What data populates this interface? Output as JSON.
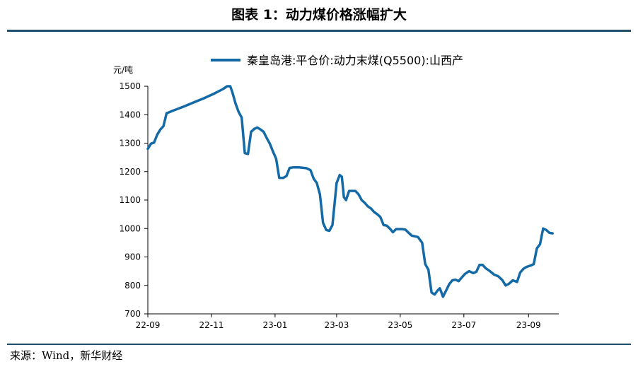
{
  "figure_title": "图表 1：动力煤价格涨幅扩大",
  "source": "来源：Wind，新华财经",
  "colors": {
    "series": "#136aa6",
    "rule": "#1f4e6b",
    "axis": "#000000"
  },
  "chart_data": {
    "type": "line",
    "title": "",
    "ylabel": "元/吨",
    "xlabel": "",
    "ylim": [
      700,
      1500
    ],
    "yticks": [
      700,
      800,
      900,
      1000,
      1100,
      1200,
      1300,
      1400,
      1500
    ],
    "xlim": [
      "2022-09-01",
      "2023-09-30"
    ],
    "xticks": [
      {
        "date": "2022-09-01",
        "label": "22-09"
      },
      {
        "date": "2022-11-01",
        "label": "22-11"
      },
      {
        "date": "2023-01-01",
        "label": "23-01"
      },
      {
        "date": "2023-03-01",
        "label": "23-03"
      },
      {
        "date": "2023-05-01",
        "label": "23-05"
      },
      {
        "date": "2023-07-01",
        "label": "23-07"
      },
      {
        "date": "2023-09-01",
        "label": "23-09"
      }
    ],
    "grid": false,
    "legend_position": "top",
    "series": [
      {
        "name": "秦皇岛港:平仓价:动力末煤(Q5500):山西产",
        "points": [
          [
            "2022-09-01",
            1280
          ],
          [
            "2022-09-04",
            1298
          ],
          [
            "2022-09-07",
            1302
          ],
          [
            "2022-09-10",
            1330
          ],
          [
            "2022-09-13",
            1348
          ],
          [
            "2022-09-16",
            1360
          ],
          [
            "2022-09-19",
            1405
          ],
          [
            "2022-09-25",
            1414
          ],
          [
            "2022-10-05",
            1428
          ],
          [
            "2022-10-15",
            1443
          ],
          [
            "2022-10-25",
            1458
          ],
          [
            "2022-11-04",
            1475
          ],
          [
            "2022-11-12",
            1490
          ],
          [
            "2022-11-16",
            1500
          ],
          [
            "2022-11-19",
            1500
          ],
          [
            "2022-11-21",
            1480
          ],
          [
            "2022-11-24",
            1440
          ],
          [
            "2022-11-27",
            1410
          ],
          [
            "2022-11-30",
            1390
          ],
          [
            "2022-12-03",
            1265
          ],
          [
            "2022-12-06",
            1262
          ],
          [
            "2022-12-09",
            1340
          ],
          [
            "2022-12-12",
            1350
          ],
          [
            "2022-12-15",
            1355
          ],
          [
            "2022-12-18",
            1348
          ],
          [
            "2022-12-21",
            1340
          ],
          [
            "2022-12-24",
            1318
          ],
          [
            "2022-12-27",
            1298
          ],
          [
            "2022-12-30",
            1270
          ],
          [
            "2023-01-02",
            1245
          ],
          [
            "2023-01-05",
            1178
          ],
          [
            "2023-01-09",
            1178
          ],
          [
            "2023-01-12",
            1185
          ],
          [
            "2023-01-15",
            1213
          ],
          [
            "2023-01-19",
            1215
          ],
          [
            "2023-01-24",
            1215
          ],
          [
            "2023-01-31",
            1212
          ],
          [
            "2023-02-04",
            1205
          ],
          [
            "2023-02-07",
            1175
          ],
          [
            "2023-02-10",
            1160
          ],
          [
            "2023-02-13",
            1120
          ],
          [
            "2023-02-16",
            1020
          ],
          [
            "2023-02-19",
            995
          ],
          [
            "2023-02-22",
            992
          ],
          [
            "2023-02-25",
            1012
          ],
          [
            "2023-03-01",
            1160
          ],
          [
            "2023-03-04",
            1188
          ],
          [
            "2023-03-06",
            1182
          ],
          [
            "2023-03-08",
            1110
          ],
          [
            "2023-03-10",
            1100
          ],
          [
            "2023-03-13",
            1132
          ],
          [
            "2023-03-19",
            1132
          ],
          [
            "2023-03-22",
            1120
          ],
          [
            "2023-03-25",
            1100
          ],
          [
            "2023-03-28",
            1090
          ],
          [
            "2023-03-31",
            1078
          ],
          [
            "2023-04-03",
            1070
          ],
          [
            "2023-04-06",
            1058
          ],
          [
            "2023-04-09",
            1050
          ],
          [
            "2023-04-12",
            1040
          ],
          [
            "2023-04-15",
            1012
          ],
          [
            "2023-04-18",
            1010
          ],
          [
            "2023-04-21",
            1000
          ],
          [
            "2023-04-24",
            987
          ],
          [
            "2023-04-27",
            998
          ],
          [
            "2023-05-03",
            998
          ],
          [
            "2023-05-06",
            996
          ],
          [
            "2023-05-09",
            985
          ],
          [
            "2023-05-12",
            975
          ],
          [
            "2023-05-18",
            970
          ],
          [
            "2023-05-22",
            950
          ],
          [
            "2023-05-25",
            875
          ],
          [
            "2023-05-28",
            855
          ],
          [
            "2023-05-31",
            775
          ],
          [
            "2023-06-03",
            768
          ],
          [
            "2023-06-06",
            783
          ],
          [
            "2023-06-08",
            790
          ],
          [
            "2023-06-11",
            760
          ],
          [
            "2023-06-14",
            782
          ],
          [
            "2023-06-17",
            805
          ],
          [
            "2023-06-20",
            818
          ],
          [
            "2023-06-23",
            820
          ],
          [
            "2023-06-26",
            815
          ],
          [
            "2023-06-29",
            828
          ],
          [
            "2023-07-02",
            840
          ],
          [
            "2023-07-06",
            850
          ],
          [
            "2023-07-10",
            843
          ],
          [
            "2023-07-13",
            848
          ],
          [
            "2023-07-16",
            872
          ],
          [
            "2023-07-19",
            872
          ],
          [
            "2023-07-22",
            860
          ],
          [
            "2023-07-26",
            850
          ],
          [
            "2023-07-30",
            838
          ],
          [
            "2023-08-03",
            832
          ],
          [
            "2023-08-07",
            818
          ],
          [
            "2023-08-10",
            800
          ],
          [
            "2023-08-13",
            805
          ],
          [
            "2023-08-17",
            818
          ],
          [
            "2023-08-21",
            812
          ],
          [
            "2023-08-24",
            845
          ],
          [
            "2023-08-27",
            858
          ],
          [
            "2023-08-30",
            865
          ],
          [
            "2023-09-03",
            870
          ],
          [
            "2023-09-06",
            875
          ],
          [
            "2023-09-09",
            930
          ],
          [
            "2023-09-12",
            945
          ],
          [
            "2023-09-15",
            1000
          ],
          [
            "2023-09-18",
            995
          ],
          [
            "2023-09-21",
            985
          ],
          [
            "2023-09-24",
            983
          ]
        ]
      }
    ]
  }
}
